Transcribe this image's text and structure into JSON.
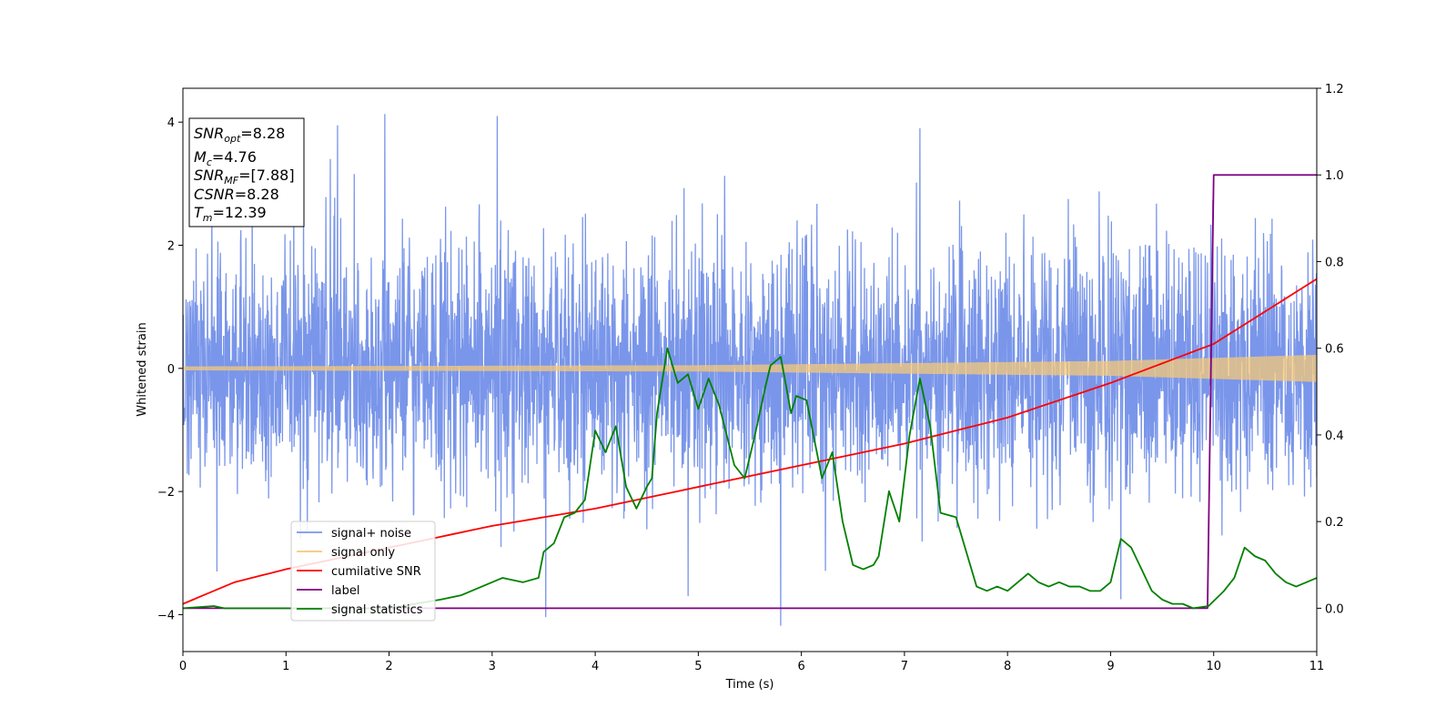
{
  "chart_data": {
    "type": "line",
    "xlabel": "Time (s)",
    "ylabel_left": "Whitened strain",
    "ylabel_right": "",
    "xlim": [
      0,
      11
    ],
    "ylim_left": [
      -4.6,
      4.55
    ],
    "ylim_right": [
      -0.1,
      1.2
    ],
    "xticks": [
      0,
      1,
      2,
      3,
      4,
      5,
      6,
      7,
      8,
      9,
      10,
      11
    ],
    "yticks_left": [
      -4,
      -2,
      0,
      2,
      4
    ],
    "yticks_right": [
      0.0,
      0.2,
      0.4,
      0.6,
      0.8,
      1.0,
      1.2
    ],
    "legend_position": "lower-left",
    "grid": false,
    "info_box": {
      "snr_opt": "=8.28",
      "mc": "=4.76",
      "snr_mf": "=[7.88]",
      "csnr": "=8.28",
      "tm": "=12.39"
    },
    "series": [
      {
        "name": "signal+ noise",
        "axis": "left",
        "color": "#4169e1",
        "noise_std": 1.0,
        "extremes": [
          [
            1.96,
            4.13
          ],
          [
            3.05,
            4.1
          ],
          [
            1.5,
            3.95
          ],
          [
            7.15,
            3.9
          ],
          [
            5.8,
            -4.18
          ],
          [
            3.52,
            -4.04
          ],
          [
            4.9,
            -3.7
          ],
          [
            9.1,
            -3.75
          ],
          [
            0.33,
            -3.3
          ]
        ]
      },
      {
        "name": "signal only",
        "axis": "left",
        "color": "#f5c878",
        "amplitude": [
          [
            0,
            0.03
          ],
          [
            5,
            0.05
          ],
          [
            9,
            0.12
          ],
          [
            11,
            0.22
          ]
        ]
      },
      {
        "name": "cumilative SNR",
        "axis": "right",
        "color": "#ff0000",
        "x": [
          0,
          0.5,
          1,
          2,
          3,
          4,
          5,
          6,
          7,
          8,
          9,
          10,
          11
        ],
        "values": [
          0.01,
          0.06,
          0.09,
          0.14,
          0.19,
          0.23,
          0.28,
          0.33,
          0.38,
          0.44,
          0.52,
          0.61,
          0.76
        ]
      },
      {
        "name": "label",
        "axis": "right",
        "color": "#800080",
        "x": [
          0,
          9.94,
          10.0,
          11
        ],
        "values": [
          0,
          0,
          1,
          1
        ]
      },
      {
        "name": "signal statistics",
        "axis": "right",
        "color": "#008000",
        "x": [
          0,
          0.3,
          0.4,
          0.5,
          1.0,
          2.0,
          2.5,
          2.7,
          2.9,
          3.1,
          3.3,
          3.45,
          3.5,
          3.6,
          3.7,
          3.8,
          3.9,
          4.0,
          4.1,
          4.2,
          4.3,
          4.4,
          4.5,
          4.55,
          4.6,
          4.7,
          4.8,
          4.9,
          5.0,
          5.1,
          5.2,
          5.35,
          5.45,
          5.55,
          5.65,
          5.7,
          5.8,
          5.9,
          5.95,
          6.05,
          6.1,
          6.2,
          6.3,
          6.4,
          6.5,
          6.6,
          6.7,
          6.75,
          6.85,
          6.95,
          7.05,
          7.15,
          7.25,
          7.35,
          7.5,
          7.6,
          7.7,
          7.8,
          7.9,
          8.0,
          8.1,
          8.2,
          8.3,
          8.4,
          8.5,
          8.6,
          8.7,
          8.8,
          8.9,
          9.0,
          9.1,
          9.2,
          9.3,
          9.4,
          9.5,
          9.6,
          9.7,
          9.8,
          9.95,
          10.1,
          10.2,
          10.3,
          10.4,
          10.5,
          10.6,
          10.7,
          10.8,
          10.9,
          11.0
        ],
        "values": [
          0.0,
          0.005,
          0.0,
          0.0,
          0.0,
          0.0,
          0.02,
          0.03,
          0.05,
          0.07,
          0.06,
          0.07,
          0.13,
          0.15,
          0.21,
          0.22,
          0.25,
          0.41,
          0.36,
          0.42,
          0.28,
          0.23,
          0.28,
          0.3,
          0.45,
          0.6,
          0.52,
          0.54,
          0.46,
          0.53,
          0.47,
          0.33,
          0.3,
          0.4,
          0.51,
          0.56,
          0.58,
          0.45,
          0.49,
          0.48,
          0.42,
          0.3,
          0.36,
          0.2,
          0.1,
          0.09,
          0.1,
          0.12,
          0.27,
          0.2,
          0.4,
          0.53,
          0.42,
          0.22,
          0.21,
          0.13,
          0.05,
          0.04,
          0.05,
          0.04,
          0.06,
          0.08,
          0.06,
          0.05,
          0.06,
          0.05,
          0.05,
          0.04,
          0.04,
          0.06,
          0.16,
          0.14,
          0.09,
          0.04,
          0.02,
          0.01,
          0.01,
          0.0,
          0.005,
          0.04,
          0.07,
          0.14,
          0.12,
          0.11,
          0.08,
          0.06,
          0.05,
          0.06,
          0.07
        ]
      }
    ]
  }
}
